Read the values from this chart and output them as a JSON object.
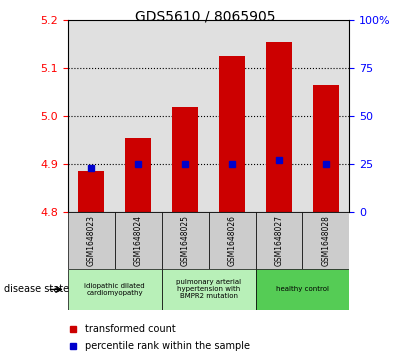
{
  "title": "GDS5610 / 8065905",
  "samples": [
    "GSM1648023",
    "GSM1648024",
    "GSM1648025",
    "GSM1648026",
    "GSM1648027",
    "GSM1648028"
  ],
  "transformed_counts": [
    4.885,
    4.955,
    5.02,
    5.125,
    5.155,
    5.065
  ],
  "percentile_ranks": [
    23,
    25,
    25,
    25,
    27,
    25
  ],
  "ylim_left": [
    4.8,
    5.2
  ],
  "ylim_right": [
    0,
    100
  ],
  "yticks_left": [
    4.8,
    4.9,
    5.0,
    5.1,
    5.2
  ],
  "yticks_right": [
    0,
    25,
    50,
    75,
    100
  ],
  "bar_color": "#cc0000",
  "percentile_color": "#0000cc",
  "bar_width": 0.55,
  "legend_red_label": "transformed count",
  "legend_blue_label": "percentile rank within the sample",
  "disease_state_label": "disease state",
  "background_plot": "#e0e0e0",
  "group_labels": [
    "idiopathic dilated\ncardiomyopathy",
    "pulmonary arterial\nhypertension with\nBMPR2 mutation",
    "healthy control"
  ],
  "group_starts": [
    0,
    2,
    4
  ],
  "group_ends": [
    2,
    4,
    6
  ],
  "group_colors": [
    "#b8f0b8",
    "#b8f0b8",
    "#55cc55"
  ],
  "sample_box_color": "#cccccc"
}
